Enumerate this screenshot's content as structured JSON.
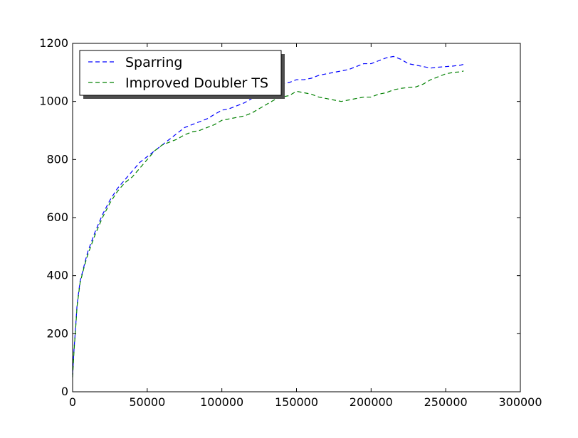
{
  "chart_data": {
    "type": "line",
    "title": "",
    "xlabel": "",
    "ylabel": "",
    "xlim": [
      0,
      300000
    ],
    "ylim": [
      0,
      1200
    ],
    "xticks": [
      0,
      50000,
      100000,
      150000,
      200000,
      250000,
      300000
    ],
    "yticks": [
      0,
      200,
      400,
      600,
      800,
      1000,
      1200
    ],
    "xtick_labels": [
      "0",
      "50000",
      "100000",
      "150000",
      "200000",
      "250000",
      "300000"
    ],
    "ytick_labels": [
      "0",
      "200",
      "400",
      "600",
      "800",
      "1000",
      "1200"
    ],
    "grid": false,
    "legend_position": "top-left",
    "series": [
      {
        "name": "Sparring",
        "color": "#0000ff",
        "line_style": "dashed",
        "x": [
          0,
          1000,
          2000,
          3000,
          5000,
          8000,
          10000,
          15000,
          20000,
          25000,
          30000,
          35000,
          40000,
          45000,
          50000,
          55000,
          60000,
          65000,
          70000,
          75000,
          80000,
          85000,
          90000,
          95000,
          100000,
          105000,
          110000,
          115000,
          120000,
          125000,
          130000,
          135000,
          140000,
          145000,
          150000,
          155000,
          160000,
          165000,
          170000,
          175000,
          180000,
          185000,
          190000,
          195000,
          200000,
          205000,
          210000,
          215000,
          220000,
          225000,
          230000,
          235000,
          240000,
          245000,
          250000,
          255000,
          260000,
          262000
        ],
        "y": [
          60,
          150,
          220,
          300,
          380,
          440,
          480,
          550,
          610,
          660,
          700,
          730,
          760,
          790,
          810,
          830,
          850,
          870,
          890,
          910,
          920,
          930,
          940,
          955,
          970,
          975,
          985,
          995,
          1010,
          1025,
          1040,
          1055,
          1060,
          1065,
          1075,
          1075,
          1080,
          1090,
          1095,
          1100,
          1105,
          1110,
          1120,
          1130,
          1130,
          1140,
          1150,
          1155,
          1145,
          1130,
          1125,
          1120,
          1115,
          1118,
          1120,
          1122,
          1125,
          1128
        ]
      },
      {
        "name": "Improved Doubler TS",
        "color": "#008000",
        "line_style": "dashed",
        "x": [
          0,
          1000,
          2000,
          3000,
          5000,
          8000,
          10000,
          15000,
          20000,
          25000,
          30000,
          35000,
          40000,
          45000,
          50000,
          55000,
          60000,
          65000,
          70000,
          75000,
          80000,
          85000,
          90000,
          95000,
          100000,
          105000,
          110000,
          115000,
          120000,
          125000,
          130000,
          135000,
          140000,
          145000,
          150000,
          155000,
          160000,
          165000,
          170000,
          175000,
          180000,
          185000,
          190000,
          195000,
          200000,
          205000,
          210000,
          215000,
          220000,
          225000,
          230000,
          235000,
          240000,
          245000,
          250000,
          255000,
          260000,
          262000
        ],
        "y": [
          50,
          145,
          215,
          295,
          375,
          435,
          470,
          540,
          600,
          650,
          690,
          720,
          740,
          770,
          800,
          830,
          850,
          860,
          870,
          885,
          895,
          900,
          910,
          920,
          935,
          940,
          945,
          950,
          960,
          975,
          990,
          1005,
          1015,
          1020,
          1035,
          1030,
          1025,
          1015,
          1010,
          1005,
          1000,
          1005,
          1010,
          1015,
          1015,
          1025,
          1030,
          1040,
          1045,
          1048,
          1050,
          1060,
          1075,
          1085,
          1095,
          1100,
          1102,
          1105
        ]
      }
    ]
  }
}
